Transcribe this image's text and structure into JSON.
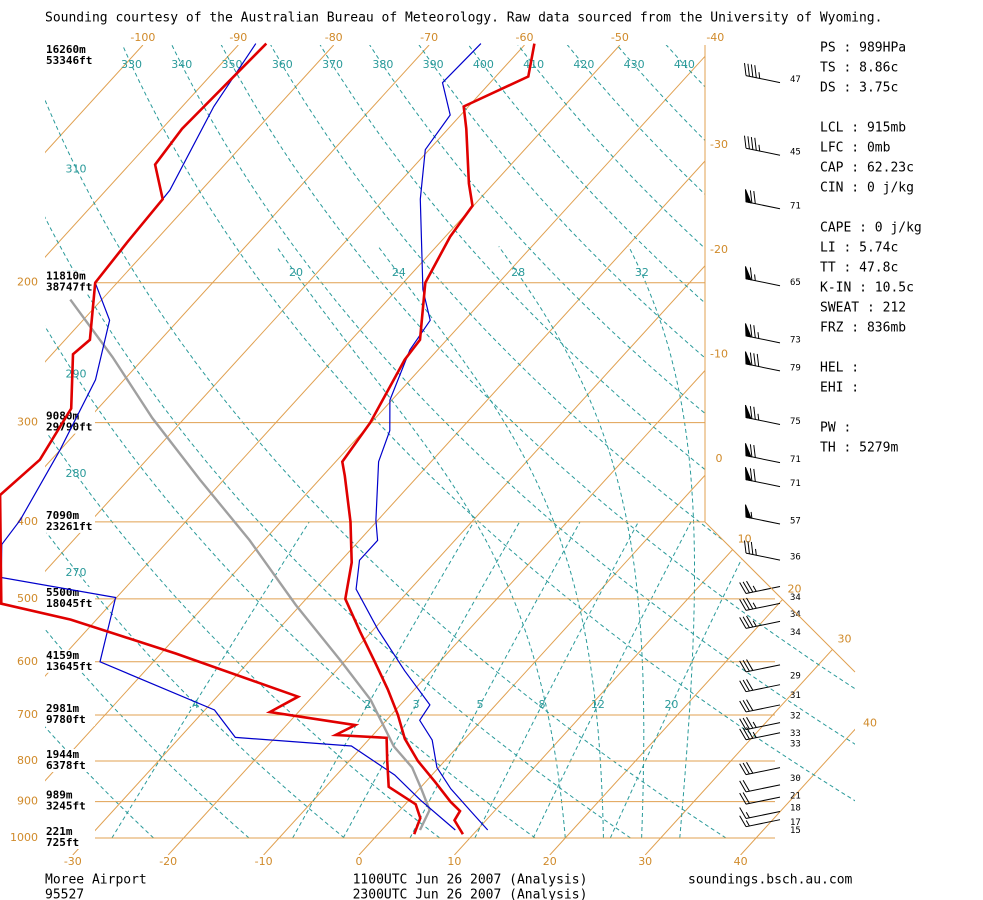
{
  "header": "Sounding courtesy of the Australian Bureau of Meteorology.  Raw data sourced from the University of Wyoming.",
  "chart_data": {
    "type": "skewt",
    "plim": [
      1000,
      100
    ],
    "pressure_ticks": [
      200,
      300,
      400,
      500,
      600,
      700,
      800,
      900,
      1000
    ],
    "heights": [
      {
        "pressure": 100,
        "m": "16260m",
        "ft": "53346ft"
      },
      {
        "pressure": 200,
        "m": "11810m",
        "ft": "38747ft"
      },
      {
        "pressure": 300,
        "m": "9080m",
        "ft": "29790ft"
      },
      {
        "pressure": 400,
        "m": "7090m",
        "ft": "23261ft"
      },
      {
        "pressure": 500,
        "m": "5500m",
        "ft": "18045ft"
      },
      {
        "pressure": 600,
        "m": "4159m",
        "ft": "13645ft"
      },
      {
        "pressure": 700,
        "m": "2981m",
        "ft": "9780ft"
      },
      {
        "pressure": 800,
        "m": "1944m",
        "ft": "6378ft"
      },
      {
        "pressure": 900,
        "m": "989m",
        "ft": "3245ft"
      },
      {
        "pressure": 1000,
        "m": "221m",
        "ft": "725ft"
      }
    ],
    "bottom_ticks": [
      -30,
      -20,
      -10,
      0,
      10,
      20,
      30,
      40
    ],
    "top_ticks": [
      -100,
      -90,
      -80,
      -70,
      -60,
      -50,
      -40
    ],
    "right_ticks": [
      -30,
      -20,
      -10,
      0,
      10,
      20,
      30,
      40
    ],
    "theta_top": [
      330,
      340,
      350,
      360,
      370,
      380,
      390,
      400,
      410,
      420,
      430,
      440
    ],
    "theta_left": [
      310,
      300,
      290,
      280,
      270,
      260,
      250
    ],
    "moist_adiabats": [
      20,
      24,
      28,
      32
    ],
    "mixing_ratios": [
      {
        "value": 0.4,
        "label": ".4"
      },
      2,
      3,
      5,
      8,
      12,
      20
    ],
    "series": [
      {
        "name": "1100UTC Jun 26 2007 (Analysis)",
        "color": "#0000cc",
        "temperature": {
          "pressure": [
            977,
            922,
            867,
            815,
            753,
            711,
            680,
            616,
            547,
            486,
            447,
            422,
            398,
            336,
            307,
            281,
            243,
            223,
            204,
            157,
            136,
            123,
            112,
            100
          ],
          "values": [
            11.1,
            7.3,
            3.3,
            -0.2,
            -3.3,
            -6.5,
            -6.9,
            -12.8,
            -19.5,
            -25.7,
            -28.1,
            -28.1,
            -30.2,
            -35.5,
            -37.3,
            -40.2,
            -42.9,
            -43.6,
            -47.3,
            -56.2,
            -60.4,
            -61.1,
            -65.0,
            -64.7
          ]
        },
        "dewpoint": {
          "pressure": [
            977,
            896,
            833,
            766,
            747,
            690,
            600,
            498,
            470,
            427,
            398,
            325,
            265,
            223,
            200,
            153,
            120,
            100
          ],
          "values": [
            7.7,
            1.2,
            -3.9,
            -11.2,
            -24.2,
            -29.0,
            -45.6,
            -50.1,
            -64.0,
            -67.1,
            -67.5,
            -70.0,
            -73.0,
            -77.2,
            -82.3,
            -83.3,
            -86.7,
            -88.3
          ]
        }
      },
      {
        "name": "2300UTC Jun 26 2007 (Analysis)",
        "color": "#e00000",
        "temperature": {
          "pressure": [
            989,
            950,
            925,
            900,
            850,
            800,
            750,
            700,
            650,
            600,
            550,
            500,
            450,
            400,
            350,
            336,
            300,
            250,
            236,
            200,
            175,
            160,
            150,
            128,
            120,
            110,
            100
          ],
          "values": [
            8.9,
            6.7,
            6.4,
            4.5,
            1.0,
            -2.8,
            -6.3,
            -9.3,
            -12.8,
            -16.8,
            -21.2,
            -25.9,
            -28.7,
            -32.7,
            -37.7,
            -39.3,
            -40.1,
            -42.5,
            -42.8,
            -47.7,
            -49.5,
            -50.1,
            -52.6,
            -58.1,
            -60.5,
            -56.6,
            -59.1
          ]
        },
        "dewpoint": {
          "pressure": [
            989,
            944,
            907,
            862,
            798,
            748,
            742,
            721,
            694,
            664,
            586,
            531,
            507,
            370,
            334,
            288,
            246,
            236,
            200,
            178,
            157,
            142,
            128,
            100
          ],
          "values": [
            3.8,
            2.9,
            1.1,
            -3.4,
            -6.1,
            -8.3,
            -13.9,
            -12.8,
            -23.0,
            -21.5,
            -38.4,
            -52.7,
            -61.5,
            -72.0,
            -71.2,
            -72.8,
            -77.8,
            -77.4,
            -82.3,
            -82.8,
            -83.2,
            -87.3,
            -87.9,
            -87.2
          ]
        }
      }
    ],
    "parcel": {
      "color": "#a0a0a0",
      "pressure": [
        977,
        922,
        867,
        815,
        767,
        670,
        597,
        509,
        422,
        354,
        296,
        248,
        210
      ],
      "values": [
        4.0,
        3.1,
        0.2,
        -2.8,
        -6.7,
        -13.6,
        -20.6,
        -30.5,
        -41.5,
        -52.5,
        -63.4,
        -73.4,
        -83.3
      ]
    },
    "winds": {
      "color": "#000000",
      "pressure": [
        111,
        137,
        160,
        200,
        236,
        256,
        299,
        334,
        358,
        399,
        443,
        498,
        523,
        551,
        625,
        662,
        702,
        739,
        761,
        842,
        885,
        917,
        956,
        979
      ],
      "speeds": [
        47,
        45,
        71,
        65,
        73,
        79,
        75,
        71,
        71,
        57,
        36,
        34,
        34,
        34,
        29,
        31,
        32,
        33,
        33,
        30,
        21,
        18,
        17,
        15
      ]
    }
  },
  "stats": [
    [
      "PS : 989HPa",
      "TS : 8.86c",
      "DS : 3.75c"
    ],
    [
      "LCL : 915mb",
      "LFC : 0mb",
      "CAP : 62.23c",
      "CIN : 0 j/kg"
    ],
    [
      "CAPE : 0 j/kg",
      "LI : 5.74c",
      "TT : 47.8c",
      "K-IN : 10.5c",
      "SWEAT : 212",
      "FRZ : 836mb"
    ],
    [
      "HEL :",
      "EHI :"
    ],
    [
      "PW :",
      "TH : 5279m"
    ]
  ],
  "footer": {
    "station": "Moree Airport",
    "id": "95527",
    "credit": "soundings.bsch.au.com"
  }
}
